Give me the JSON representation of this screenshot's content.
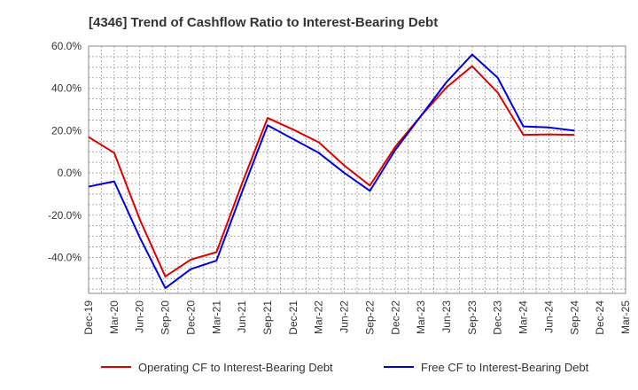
{
  "chart_data": {
    "type": "line",
    "title": "[4346]  Trend of Cashflow Ratio to Interest-Bearing Debt",
    "xlabel": "",
    "ylabel": "",
    "x": [
      "Dec-19",
      "Mar-20",
      "Jun-20",
      "Sep-20",
      "Dec-20",
      "Mar-21",
      "Jun-21",
      "Sep-21",
      "Dec-21",
      "Mar-22",
      "Jun-22",
      "Sep-22",
      "Dec-22",
      "Mar-23",
      "Jun-23",
      "Sep-23",
      "Dec-23",
      "Mar-24",
      "Jun-24",
      "Sep-24",
      "Dec-24",
      "Mar-25"
    ],
    "ylim": [
      -57,
      60
    ],
    "yticks": [
      60,
      40,
      20,
      0,
      -20,
      -40
    ],
    "ytick_labels": [
      "60.0%",
      "40.0%",
      "20.0%",
      "0.0%",
      "-20.0%",
      "-40.0%"
    ],
    "series": [
      {
        "name": "Operating CF to Interest-Bearing Debt",
        "color": "#dd0000",
        "values": [
          17.0,
          9.5,
          -22.0,
          -49.0,
          -41.0,
          -37.5,
          -5.0,
          26.0,
          20.5,
          14.5,
          3.5,
          -6.0,
          12.5,
          27.0,
          40.5,
          50.5,
          38.0,
          18.0,
          18.2,
          18.0,
          null,
          null
        ]
      },
      {
        "name": "Free CF to Interest-Bearing Debt",
        "color": "#0000dd",
        "values": [
          -6.5,
          -4.0,
          -30.5,
          -54.5,
          -45.5,
          -41.5,
          -9.0,
          22.5,
          16.0,
          9.5,
          0.0,
          -8.5,
          11.0,
          27.0,
          43.0,
          56.0,
          45.0,
          22.0,
          21.5,
          20.0,
          null,
          null
        ]
      }
    ],
    "grid": true,
    "legend": "bottom"
  }
}
